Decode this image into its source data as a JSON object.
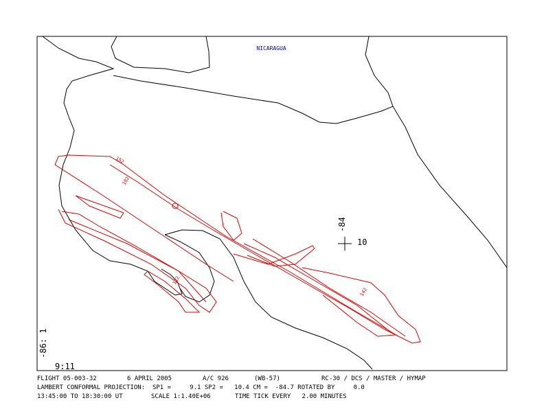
{
  "map": {
    "country_label": "NICARAGUA",
    "lon_label": "-84",
    "lat_label": "10",
    "corner_label": "-86: 1",
    "time_label": "9:11",
    "track_labels": [
      "152",
      "182",
      "122",
      "142"
    ],
    "footer": {
      "line1": [
        "FLIGHT 05-003-32",
        "6 APRIL 2005",
        "A/C 926",
        "(WB-57)",
        "RC-30 / DCS / MASTER / HYMAP"
      ],
      "line2": "LAMBERT CONFORMAL PROJECTION:  SP1 =     9.1 SP2 =   10.4 CM =  -84.7 ROTATED BY     0.0",
      "line3": [
        "13:45:00 TO 18:30:00 UT",
        "SCALE 1:1.40E+06",
        "TIME TICK EVERY   2.00 MINUTES"
      ]
    }
  }
}
